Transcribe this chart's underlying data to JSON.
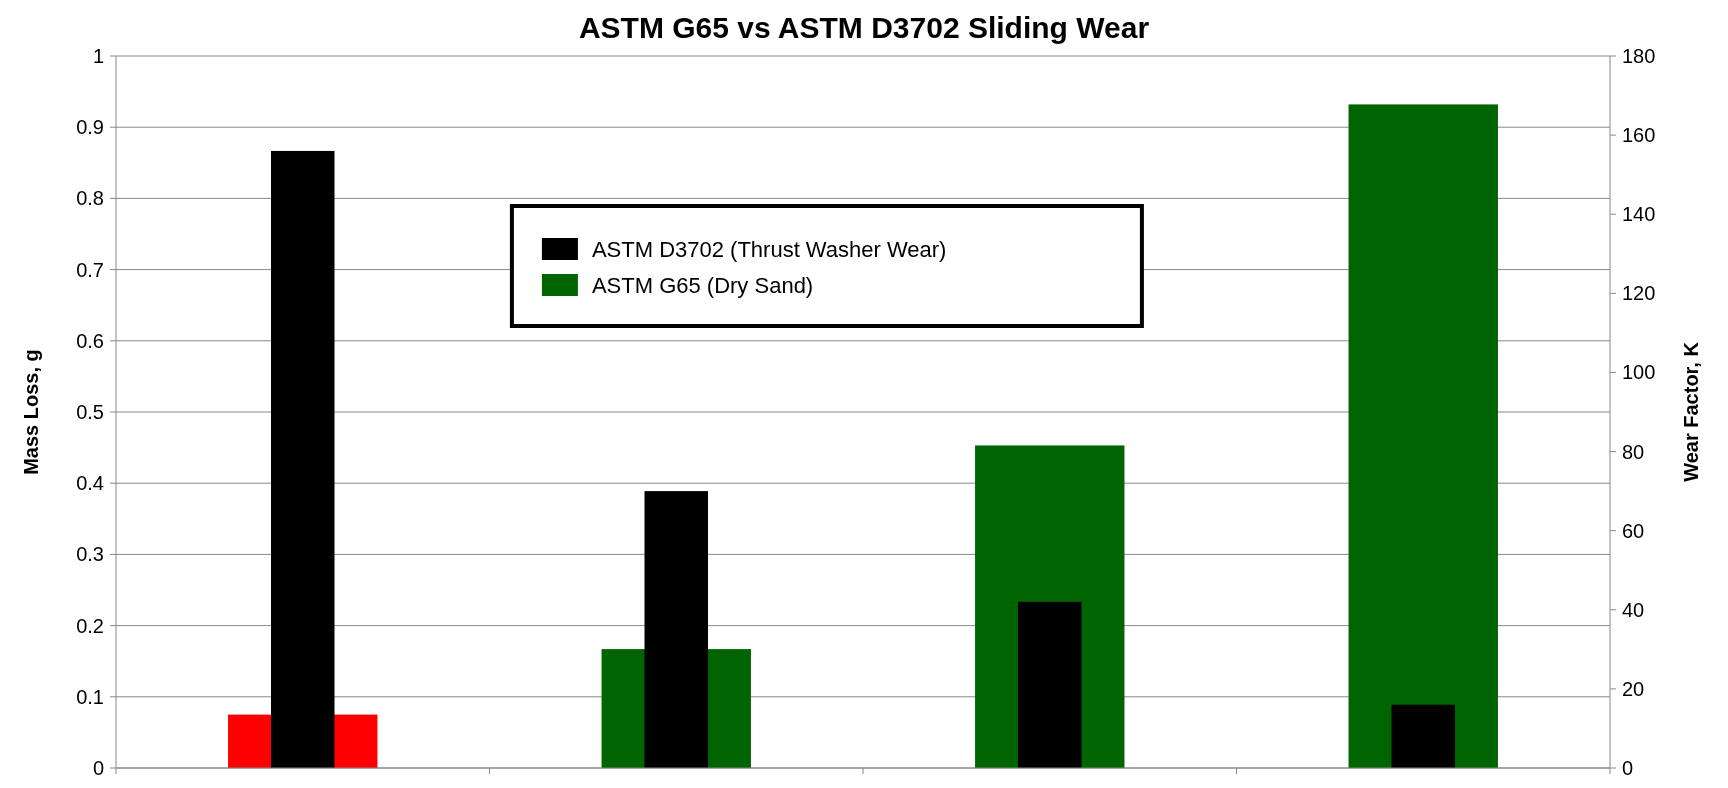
{
  "chart_data": {
    "type": "bar",
    "title": "ASTM G65 vs ASTM D3702 Sliding Wear",
    "ylabel": "Mass Loss, g",
    "y2label": "Wear Factor, K",
    "categories": [
      null,
      null,
      null,
      null
    ],
    "series": [
      {
        "name": "ASTM G65 (Dry Sand)",
        "color": "#006400",
        "colors": [
          "#ff0000",
          "#006400",
          "#006400",
          "#006400"
        ],
        "values": [
          0.075,
          0.167,
          0.453,
          0.932
        ]
      },
      {
        "name": "ASTM D3702 (Thrust Washer Wear)",
        "color": "#000000",
        "axis": "y2",
        "values": [
          156,
          70,
          42,
          16
        ]
      }
    ],
    "ylim": [
      0,
      1
    ],
    "yticks": [
      0,
      0.1,
      0.2,
      0.3,
      0.4,
      0.5,
      0.6,
      0.7,
      0.8,
      0.9,
      1
    ],
    "y2lim": [
      0,
      180
    ],
    "y2ticks": [
      0,
      20,
      40,
      60,
      80,
      100,
      120,
      140,
      160,
      180
    ],
    "grid": "y",
    "legend": "top"
  }
}
